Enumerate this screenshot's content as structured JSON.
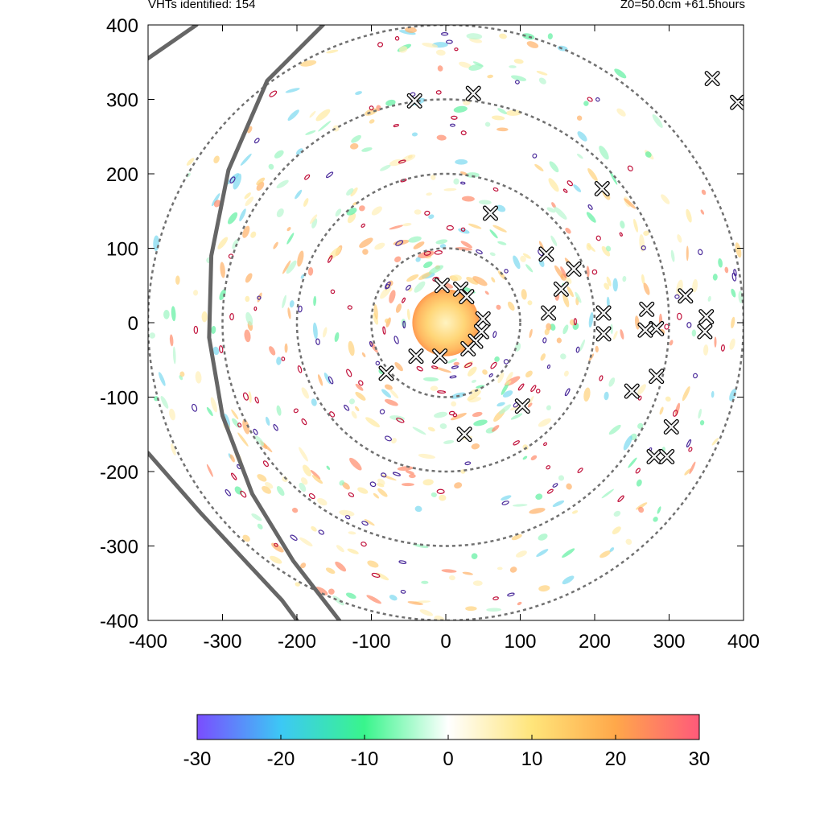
{
  "header": {
    "vht_count_text": "VHTs identified: 154",
    "run_info_text": "Z0=50.0cm  +61.5hours"
  },
  "chart_data": {
    "type": "heatmap",
    "title": "",
    "xlabel": "",
    "ylabel": "",
    "xlim": [
      -400,
      400
    ],
    "ylim": [
      -400,
      400
    ],
    "x_ticks": [
      -400,
      -300,
      -200,
      -100,
      0,
      100,
      200,
      300,
      400
    ],
    "y_ticks": [
      -400,
      -300,
      -200,
      -100,
      0,
      100,
      200,
      300,
      400
    ],
    "x_tick_labels": [
      "-400",
      "-300",
      "-200",
      "-100",
      "0",
      "100",
      "200",
      "300",
      "400"
    ],
    "y_tick_labels": [
      "-400",
      "-300",
      "-200",
      "-100",
      "0",
      "100",
      "200",
      "300",
      "400"
    ],
    "grid": false,
    "range_rings_radius": [
      100,
      200,
      300,
      400
    ],
    "range_ring_style": "dashed gray",
    "colorbar": {
      "range": [
        -30,
        30
      ],
      "ticks": [
        -30,
        -20,
        -10,
        0,
        10,
        20,
        30
      ],
      "tick_labels": [
        "-30",
        "-20",
        "-10",
        "0",
        "10",
        "20",
        "30"
      ],
      "colors": [
        "#7a4dff",
        "#3cc8f5",
        "#39f58c",
        "#ffffff",
        "#ffe57a",
        "#ffa84a",
        "#ff5a7a"
      ]
    },
    "core_maximum": {
      "x": 0,
      "y": 0,
      "radius": 45
    },
    "vht_markers": [
      [
        -42,
        298
      ],
      [
        37,
        308
      ],
      [
        358,
        328
      ],
      [
        392,
        296
      ],
      [
        210,
        180
      ],
      [
        60,
        147
      ],
      [
        135,
        92
      ],
      [
        172,
        72
      ],
      [
        155,
        45
      ],
      [
        -5,
        50
      ],
      [
        20,
        45
      ],
      [
        28,
        35
      ],
      [
        138,
        13
      ],
      [
        212,
        13
      ],
      [
        270,
        18
      ],
      [
        283,
        -8
      ],
      [
        268,
        -10
      ],
      [
        350,
        8
      ],
      [
        348,
        -12
      ],
      [
        322,
        36
      ],
      [
        50,
        5
      ],
      [
        48,
        -12
      ],
      [
        40,
        -25
      ],
      [
        30,
        -35
      ],
      [
        -40,
        -45
      ],
      [
        -8,
        -45
      ],
      [
        -80,
        -68
      ],
      [
        103,
        -112
      ],
      [
        25,
        -150
      ],
      [
        250,
        -92
      ],
      [
        283,
        -72
      ],
      [
        303,
        -140
      ],
      [
        280,
        -180
      ],
      [
        297,
        -180
      ],
      [
        212,
        -15
      ]
    ],
    "tracks": [
      {
        "points": [
          [
            -400,
            355
          ],
          [
            -335,
            400
          ]
        ]
      },
      {
        "points": [
          [
            -165,
            400
          ],
          [
            -240,
            325
          ],
          [
            -292,
            205
          ],
          [
            -315,
            90
          ],
          [
            -318,
            -20
          ],
          [
            -300,
            -125
          ],
          [
            -260,
            -230
          ],
          [
            -205,
            -320
          ],
          [
            -143,
            -400
          ]
        ]
      },
      {
        "points": [
          [
            -400,
            -175
          ],
          [
            -330,
            -255
          ],
          [
            -265,
            -325
          ],
          [
            -220,
            -373
          ],
          [
            -200,
            -400
          ]
        ]
      }
    ]
  }
}
